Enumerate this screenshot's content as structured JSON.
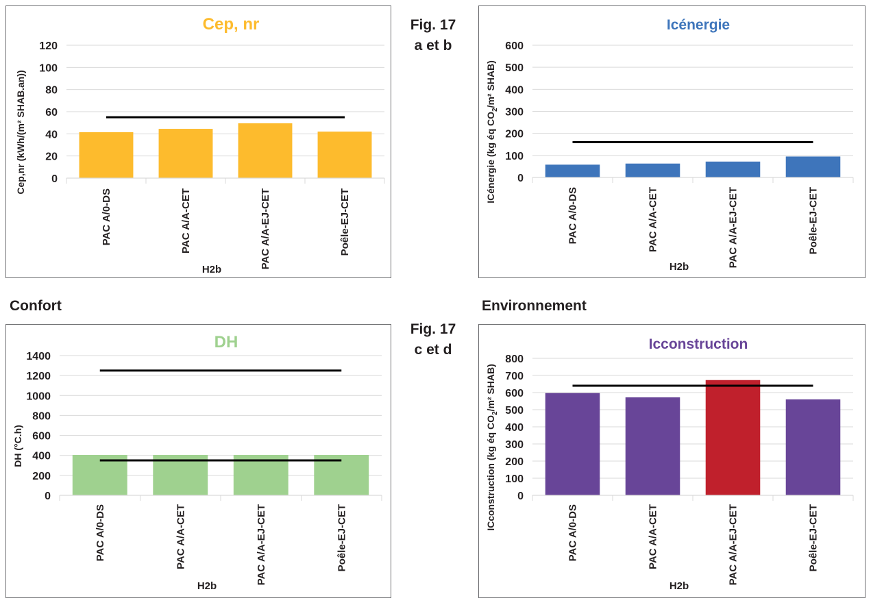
{
  "figures": {
    "top": {
      "line1": "Fig. 17",
      "line2": "a et b"
    },
    "bottom": {
      "line1": "Fig. 17",
      "line2": "c et d"
    }
  },
  "sections": {
    "left": "Confort",
    "right": "Environnement"
  },
  "colors": {
    "orange": "#fdbb2d",
    "blue": "#3e75bb",
    "green": "#9fd18f",
    "purple": "#684598",
    "red": "#c0202c",
    "reference": "#000000"
  },
  "chart_data": [
    {
      "type": "bar",
      "title": "Cep, nr",
      "title_color": "#fdbb2d",
      "ylabel": "Cep,nr (kWh/(m² SHAB.an))",
      "xlabel": "H2b",
      "categories": [
        "PAC A/0-DS",
        "PAC A/A-CET",
        "PAC A/A-EJ-CET",
        "Poêle-EJ-CET"
      ],
      "values": [
        41.5,
        44.5,
        49.5,
        42
      ],
      "bar_colors": [
        "#fdbb2d",
        "#fdbb2d",
        "#fdbb2d",
        "#fdbb2d"
      ],
      "reference_lines": [
        55
      ],
      "ylim": [
        0,
        120
      ],
      "yticks": [
        0,
        20,
        40,
        60,
        80,
        100,
        120
      ],
      "grid": true
    },
    {
      "type": "bar",
      "title": "Icénergie",
      "title_color": "#3e75bb",
      "ylabel": "ICénergie (kg éq CO2/m² SHAB)",
      "xlabel": "H2b",
      "categories": [
        "PAC A/0-DS",
        "PAC A/A-CET",
        "PAC A/A-EJ-CET",
        "Poêle-EJ-CET"
      ],
      "values": [
        58,
        63,
        72,
        95
      ],
      "bar_colors": [
        "#3e75bb",
        "#3e75bb",
        "#3e75bb",
        "#3e75bb"
      ],
      "reference_lines": [
        160
      ],
      "ylim": [
        0,
        600
      ],
      "yticks": [
        0,
        100,
        200,
        300,
        400,
        500,
        600
      ],
      "grid": true
    },
    {
      "type": "bar",
      "title": "DH",
      "title_color": "#9fd18f",
      "ylabel": "DH (°C.h)",
      "xlabel": "H2b",
      "categories": [
        "PAC A/0-DS",
        "PAC A/A-CET",
        "PAC A/A-EJ-CET",
        "Poêle-EJ-CET"
      ],
      "values": [
        405,
        405,
        405,
        405
      ],
      "bar_colors": [
        "#9fd18f",
        "#9fd18f",
        "#9fd18f",
        "#9fd18f"
      ],
      "reference_lines": [
        1250,
        350
      ],
      "ylim": [
        0,
        1400
      ],
      "yticks": [
        0,
        200,
        400,
        600,
        800,
        1000,
        1200,
        1400
      ],
      "grid": true
    },
    {
      "type": "bar",
      "title": "Icconstruction",
      "title_color": "#684598",
      "ylabel": "ICconstruction (kg éq CO2/m² SHAB)",
      "xlabel": "H2b",
      "categories": [
        "PAC A/0-DS",
        "PAC A/A-CET",
        "PAC A/A-EJ-CET",
        "Poêle-EJ-CET"
      ],
      "values": [
        597,
        572,
        673,
        560
      ],
      "bar_colors": [
        "#684598",
        "#684598",
        "#c0202c",
        "#684598"
      ],
      "reference_lines": [
        640
      ],
      "ylim": [
        0,
        800
      ],
      "yticks": [
        0,
        100,
        200,
        300,
        400,
        500,
        600,
        700,
        800
      ],
      "grid": true
    }
  ]
}
